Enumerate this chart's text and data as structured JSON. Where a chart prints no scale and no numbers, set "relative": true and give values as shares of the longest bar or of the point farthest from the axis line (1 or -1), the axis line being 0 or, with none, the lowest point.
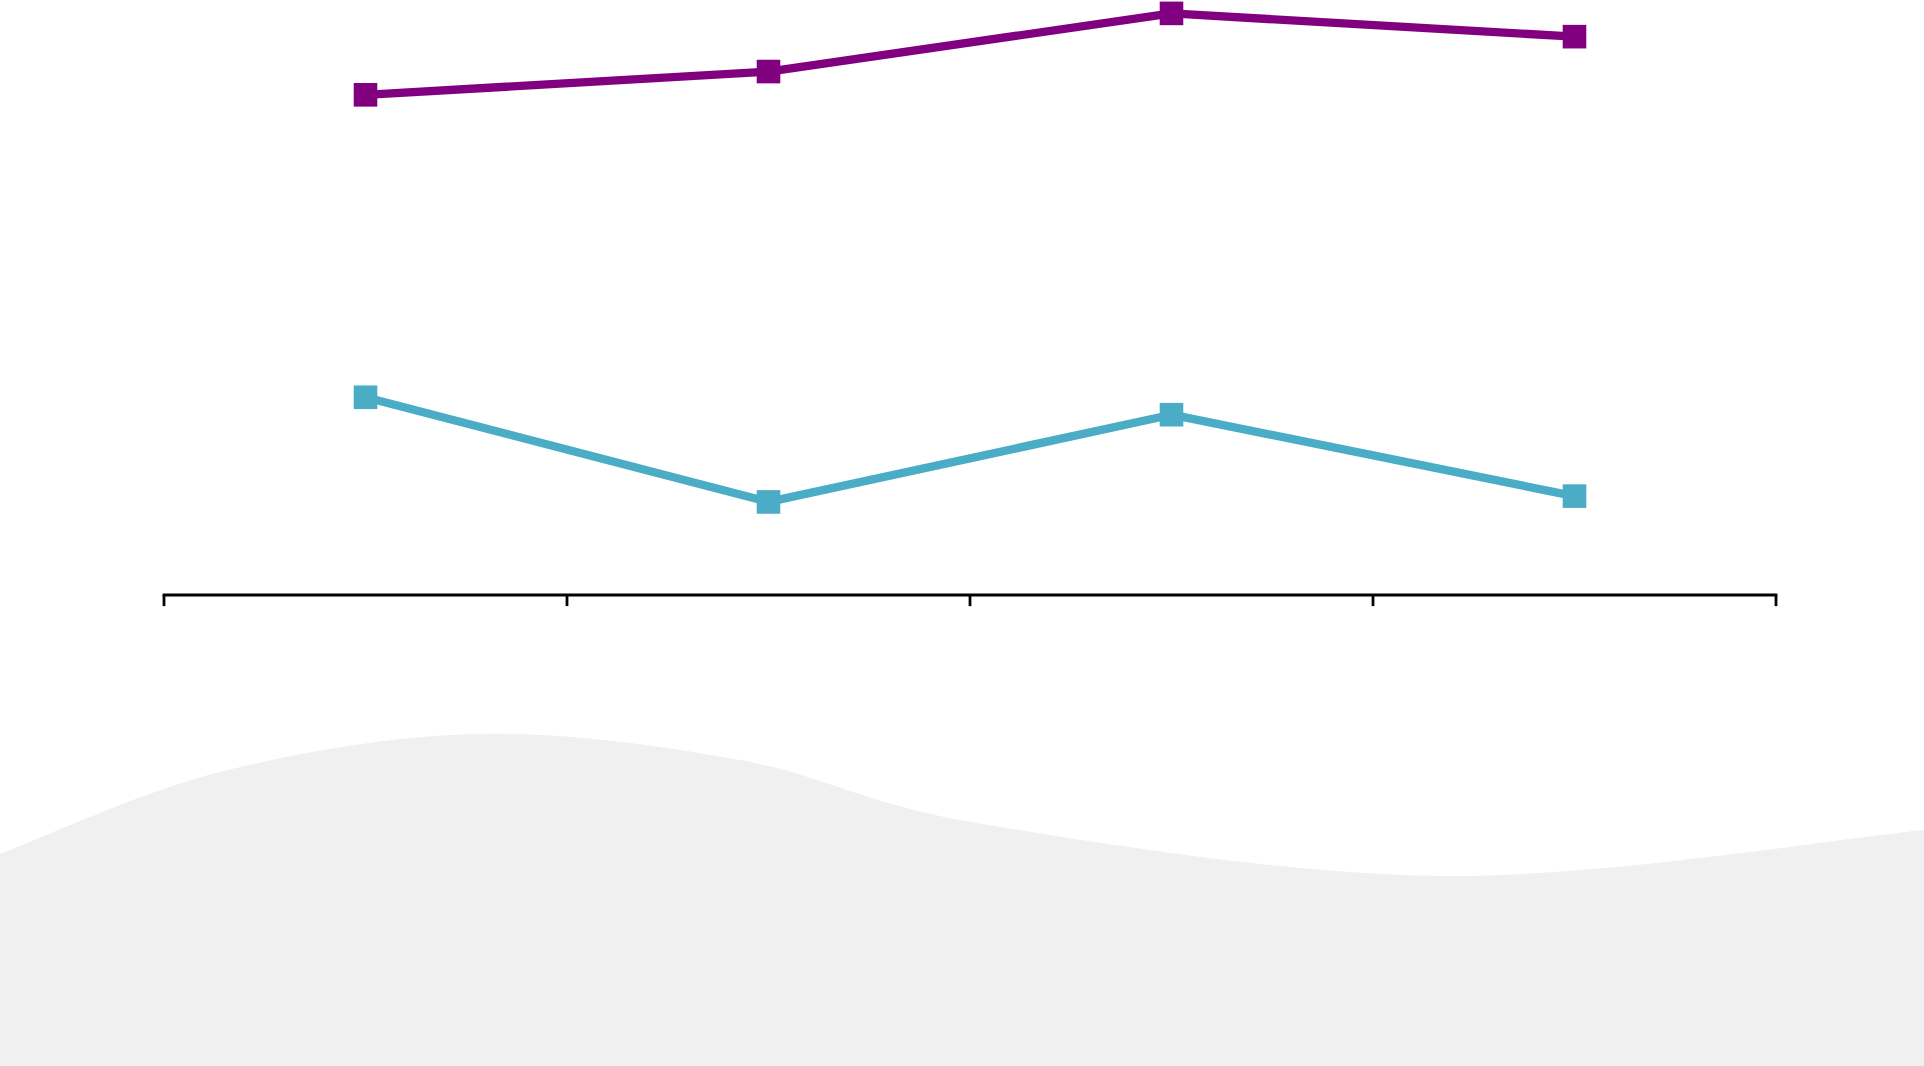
{
  "chart_data": {
    "type": "line",
    "relative": true,
    "categories": [
      null,
      null,
      null,
      null
    ],
    "marker": "square",
    "line_style": "solid",
    "series": [
      {
        "color": "#800080",
        "values": [
          0.86,
          0.9,
          1,
          0.96
        ]
      },
      {
        "color": "#4bacc6",
        "values": [
          0.34,
          0.16,
          0.31,
          0.17
        ]
      }
    ]
  }
}
